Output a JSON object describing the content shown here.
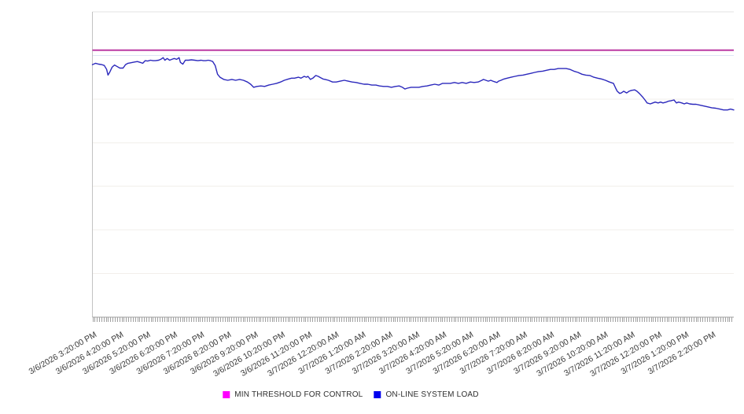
{
  "chart_data": {
    "type": "line",
    "title": "",
    "xlabel": "",
    "ylabel": "",
    "x_axis": {
      "unit": "time",
      "t_max_hours": 23.83,
      "first_label_offset_hours": 0.06,
      "label_interval_hours": 1,
      "minor_tick_minutes": 5,
      "labels": [
        "3/6/2026 3:20:00 PM",
        "3/6/2026 4:20:00 PM",
        "3/6/2026 5:20:00 PM",
        "3/6/2026 6:20:00 PM",
        "3/6/2026 7:20:00 PM",
        "3/6/2026 8:20:00 PM",
        "3/6/2026 9:20:00 PM",
        "3/6/2026 10:20:00 PM",
        "3/6/2026 11:20:00 PM",
        "3/7/2026 12:20:00 AM",
        "3/7/2026 1:20:00 AM",
        "3/7/2026 2:20:00 AM",
        "3/7/2026 3:20:00 AM",
        "3/7/2026 4:20:00 AM",
        "3/7/2026 5:20:00 AM",
        "3/7/2026 6:20:00 AM",
        "3/7/2026 7:20:00 AM",
        "3/7/2026 8:20:00 AM",
        "3/7/2026 9:20:00 AM",
        "3/7/2026 10:20:00 AM",
        "3/7/2026 11:20:00 AM",
        "3/7/2026 12:20:00 PM",
        "3/7/2026 1:20:00 PM",
        "3/7/2026 2:20:00 PM"
      ]
    },
    "y_axis": {
      "ylim": [
        0,
        7
      ],
      "gridline_spacing": 1,
      "tick_labels_visible": false
    },
    "grid": true,
    "legend_position": "bottom-center",
    "colors": {
      "threshold_line": "#bb3aa4",
      "load_line": "#2b28bc",
      "legend_threshold_swatch": "#ff00ff",
      "legend_load_swatch": "#0000ee",
      "gridline": "#f2efeb",
      "gridline_light_blue": "#dde6f5",
      "top_border": "#e3e3e3",
      "y_axis_line": "#c2c2c2",
      "x_axis_line": "#9e9e9e",
      "tick": "#a0a0a0",
      "axis_label_text": "#3a3a3a"
    },
    "series": [
      {
        "name": "MIN THRESHOLD FOR CONTROL",
        "type": "horizontal-threshold",
        "value": 6.12
      },
      {
        "name": "ON-LINE SYSTEM LOAD",
        "type": "line",
        "points": [
          [
            0,
            5.79
          ],
          [
            0.12,
            5.82
          ],
          [
            0.23,
            5.8
          ],
          [
            0.35,
            5.79
          ],
          [
            0.44,
            5.77
          ],
          [
            0.53,
            5.68
          ],
          [
            0.58,
            5.55
          ],
          [
            0.64,
            5.61
          ],
          [
            0.73,
            5.73
          ],
          [
            0.82,
            5.78
          ],
          [
            0.91,
            5.75
          ],
          [
            1.02,
            5.71
          ],
          [
            1.14,
            5.71
          ],
          [
            1.23,
            5.79
          ],
          [
            1.32,
            5.82
          ],
          [
            1.4,
            5.83
          ],
          [
            1.49,
            5.84
          ],
          [
            1.58,
            5.85
          ],
          [
            1.67,
            5.86
          ],
          [
            1.78,
            5.84
          ],
          [
            1.87,
            5.82
          ],
          [
            1.96,
            5.88
          ],
          [
            2.05,
            5.87
          ],
          [
            2.16,
            5.89
          ],
          [
            2.25,
            5.88
          ],
          [
            2.34,
            5.88
          ],
          [
            2.46,
            5.89
          ],
          [
            2.54,
            5.91
          ],
          [
            2.63,
            5.95
          ],
          [
            2.69,
            5.89
          ],
          [
            2.78,
            5.93
          ],
          [
            2.87,
            5.89
          ],
          [
            2.95,
            5.91
          ],
          [
            3.04,
            5.93
          ],
          [
            3.13,
            5.91
          ],
          [
            3.22,
            5.95
          ],
          [
            3.27,
            5.84
          ],
          [
            3.36,
            5.8
          ],
          [
            3.45,
            5.89
          ],
          [
            3.57,
            5.89
          ],
          [
            3.68,
            5.9
          ],
          [
            3.8,
            5.89
          ],
          [
            3.92,
            5.88
          ],
          [
            4.04,
            5.89
          ],
          [
            4.12,
            5.88
          ],
          [
            4.21,
            5.88
          ],
          [
            4.3,
            5.89
          ],
          [
            4.39,
            5.88
          ],
          [
            4.47,
            5.86
          ],
          [
            4.56,
            5.77
          ],
          [
            4.65,
            5.57
          ],
          [
            4.74,
            5.5
          ],
          [
            4.88,
            5.45
          ],
          [
            5.03,
            5.43
          ],
          [
            5.18,
            5.45
          ],
          [
            5.32,
            5.43
          ],
          [
            5.47,
            5.45
          ],
          [
            5.61,
            5.43
          ],
          [
            5.76,
            5.39
          ],
          [
            5.88,
            5.34
          ],
          [
            5.99,
            5.27
          ],
          [
            6.11,
            5.29
          ],
          [
            6.26,
            5.3
          ],
          [
            6.4,
            5.29
          ],
          [
            6.55,
            5.32
          ],
          [
            6.7,
            5.34
          ],
          [
            6.84,
            5.36
          ],
          [
            6.99,
            5.39
          ],
          [
            7.13,
            5.43
          ],
          [
            7.28,
            5.46
          ],
          [
            7.4,
            5.48
          ],
          [
            7.51,
            5.48
          ],
          [
            7.66,
            5.5
          ],
          [
            7.75,
            5.48
          ],
          [
            7.87,
            5.52
          ],
          [
            7.95,
            5.5
          ],
          [
            8.01,
            5.52
          ],
          [
            8.1,
            5.45
          ],
          [
            8.19,
            5.48
          ],
          [
            8.3,
            5.54
          ],
          [
            8.39,
            5.52
          ],
          [
            8.48,
            5.49
          ],
          [
            8.57,
            5.46
          ],
          [
            8.65,
            5.45
          ],
          [
            8.77,
            5.43
          ],
          [
            8.92,
            5.39
          ],
          [
            9.06,
            5.39
          ],
          [
            9.21,
            5.41
          ],
          [
            9.36,
            5.43
          ],
          [
            9.5,
            5.41
          ],
          [
            9.65,
            5.39
          ],
          [
            9.8,
            5.38
          ],
          [
            9.94,
            5.36
          ],
          [
            10.09,
            5.34
          ],
          [
            10.23,
            5.34
          ],
          [
            10.38,
            5.32
          ],
          [
            10.53,
            5.32
          ],
          [
            10.67,
            5.3
          ],
          [
            10.82,
            5.29
          ],
          [
            10.96,
            5.29
          ],
          [
            11.11,
            5.27
          ],
          [
            11.26,
            5.29
          ],
          [
            11.4,
            5.3
          ],
          [
            11.52,
            5.27
          ],
          [
            11.61,
            5.23
          ],
          [
            11.7,
            5.25
          ],
          [
            11.84,
            5.27
          ],
          [
            11.99,
            5.27
          ],
          [
            12.13,
            5.27
          ],
          [
            12.28,
            5.29
          ],
          [
            12.43,
            5.3
          ],
          [
            12.57,
            5.32
          ],
          [
            12.72,
            5.34
          ],
          [
            12.87,
            5.32
          ],
          [
            13.01,
            5.36
          ],
          [
            13.16,
            5.36
          ],
          [
            13.3,
            5.36
          ],
          [
            13.45,
            5.38
          ],
          [
            13.6,
            5.36
          ],
          [
            13.74,
            5.38
          ],
          [
            13.89,
            5.36
          ],
          [
            14.04,
            5.39
          ],
          [
            14.18,
            5.38
          ],
          [
            14.33,
            5.39
          ],
          [
            14.47,
            5.43
          ],
          [
            14.53,
            5.45
          ],
          [
            14.62,
            5.43
          ],
          [
            14.71,
            5.41
          ],
          [
            14.8,
            5.43
          ],
          [
            14.88,
            5.41
          ],
          [
            14.97,
            5.39
          ],
          [
            15.03,
            5.38
          ],
          [
            15.09,
            5.41
          ],
          [
            15.18,
            5.43
          ],
          [
            15.29,
            5.46
          ],
          [
            15.41,
            5.48
          ],
          [
            15.56,
            5.5
          ],
          [
            15.7,
            5.52
          ],
          [
            15.85,
            5.54
          ],
          [
            16,
            5.55
          ],
          [
            16.14,
            5.57
          ],
          [
            16.29,
            5.59
          ],
          [
            16.43,
            5.61
          ],
          [
            16.58,
            5.63
          ],
          [
            16.73,
            5.64
          ],
          [
            16.87,
            5.66
          ],
          [
            17.02,
            5.68
          ],
          [
            17.16,
            5.68
          ],
          [
            17.31,
            5.7
          ],
          [
            17.46,
            5.7
          ],
          [
            17.6,
            5.7
          ],
          [
            17.75,
            5.68
          ],
          [
            17.89,
            5.64
          ],
          [
            18.04,
            5.61
          ],
          [
            18.19,
            5.57
          ],
          [
            18.33,
            5.55
          ],
          [
            18.48,
            5.54
          ],
          [
            18.63,
            5.5
          ],
          [
            18.77,
            5.48
          ],
          [
            18.92,
            5.46
          ],
          [
            19.06,
            5.43
          ],
          [
            19.21,
            5.39
          ],
          [
            19.36,
            5.36
          ],
          [
            19.44,
            5.25
          ],
          [
            19.5,
            5.18
          ],
          [
            19.59,
            5.13
          ],
          [
            19.65,
            5.14
          ],
          [
            19.74,
            5.18
          ],
          [
            19.85,
            5.14
          ],
          [
            19.94,
            5.18
          ],
          [
            20.03,
            5.2
          ],
          [
            20.15,
            5.21
          ],
          [
            20.23,
            5.18
          ],
          [
            20.32,
            5.13
          ],
          [
            20.44,
            5.05
          ],
          [
            20.53,
            4.98
          ],
          [
            20.61,
            4.91
          ],
          [
            20.73,
            4.89
          ],
          [
            20.82,
            4.91
          ],
          [
            20.91,
            4.93
          ],
          [
            21.02,
            4.91
          ],
          [
            21.11,
            4.93
          ],
          [
            21.2,
            4.91
          ],
          [
            21.32,
            4.93
          ],
          [
            21.4,
            4.95
          ],
          [
            21.49,
            4.96
          ],
          [
            21.61,
            4.98
          ],
          [
            21.7,
            4.91
          ],
          [
            21.78,
            4.93
          ],
          [
            21.9,
            4.91
          ],
          [
            21.99,
            4.89
          ],
          [
            22.08,
            4.91
          ],
          [
            22.19,
            4.89
          ],
          [
            22.31,
            4.88
          ],
          [
            22.43,
            4.88
          ],
          [
            22.57,
            4.86
          ],
          [
            22.72,
            4.84
          ],
          [
            22.87,
            4.82
          ],
          [
            23.01,
            4.8
          ],
          [
            23.16,
            4.79
          ],
          [
            23.31,
            4.77
          ],
          [
            23.45,
            4.75
          ],
          [
            23.6,
            4.75
          ],
          [
            23.71,
            4.77
          ],
          [
            23.83,
            4.75
          ]
        ]
      }
    ]
  }
}
